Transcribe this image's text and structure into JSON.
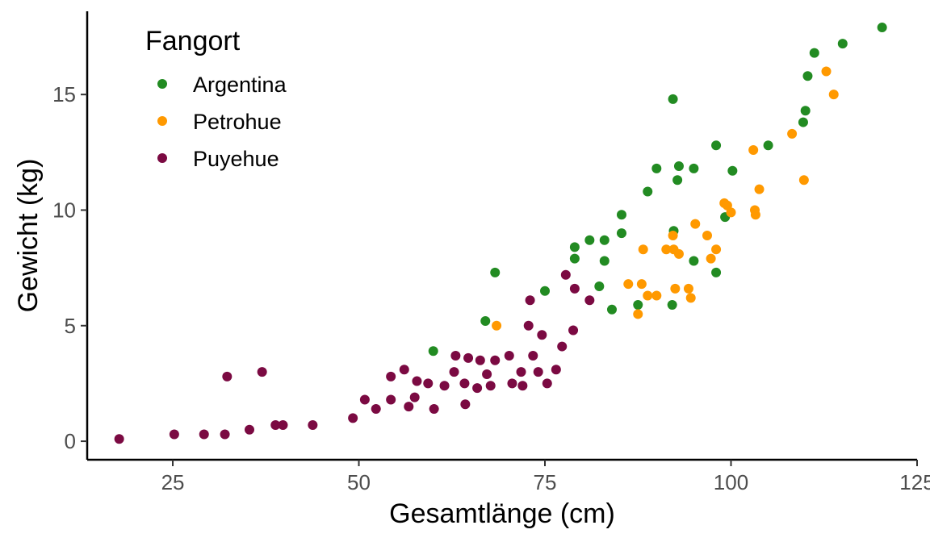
{
  "chart_data": {
    "type": "scatter",
    "title": "",
    "xlabel": "Gesamtlänge (cm)",
    "ylabel": "Gewicht (kg)",
    "xlim": [
      13.5,
      125
    ],
    "ylim": [
      -0.8,
      18.6
    ],
    "x_ticks": [
      25,
      50,
      75,
      100,
      125
    ],
    "y_ticks": [
      0,
      5,
      10,
      15
    ],
    "grid": false,
    "legend": {
      "title": "Fangort",
      "position": "top-left"
    },
    "series": [
      {
        "name": "Argentina",
        "color": "#228B22",
        "points": [
          [
            60,
            3.9
          ],
          [
            67,
            5.2
          ],
          [
            68.3,
            7.3
          ],
          [
            75,
            6.5
          ],
          [
            79,
            8.4
          ],
          [
            79,
            7.9
          ],
          [
            81,
            8.7
          ],
          [
            82.3,
            6.7
          ],
          [
            83,
            8.7
          ],
          [
            83,
            7.8
          ],
          [
            84,
            5.7
          ],
          [
            85.3,
            9.8
          ],
          [
            85.3,
            9.0
          ],
          [
            87.5,
            5.9
          ],
          [
            88.8,
            10.8
          ],
          [
            90,
            11.8
          ],
          [
            92.2,
            14.8
          ],
          [
            92.3,
            9.1
          ],
          [
            92.1,
            5.9
          ],
          [
            92.8,
            11.3
          ],
          [
            93,
            11.9
          ],
          [
            95,
            11.8
          ],
          [
            95,
            7.8
          ],
          [
            98,
            12.8
          ],
          [
            98,
            7.3
          ],
          [
            99.2,
            9.7
          ],
          [
            100.2,
            11.7
          ],
          [
            105,
            12.8
          ],
          [
            109.7,
            13.8
          ],
          [
            110,
            14.3
          ],
          [
            110.3,
            15.8
          ],
          [
            111.2,
            16.8
          ],
          [
            115,
            17.2
          ],
          [
            120.3,
            17.9
          ]
        ]
      },
      {
        "name": "Petrohue",
        "color": "#FF9900",
        "points": [
          [
            68.5,
            5.0
          ],
          [
            86.2,
            6.8
          ],
          [
            87.5,
            5.5
          ],
          [
            88,
            6.8
          ],
          [
            88.2,
            8.3
          ],
          [
            88.8,
            6.3
          ],
          [
            90,
            6.3
          ],
          [
            91.3,
            8.3
          ],
          [
            92.2,
            8.9
          ],
          [
            92.3,
            8.3
          ],
          [
            92.5,
            6.6
          ],
          [
            93,
            8.1
          ],
          [
            94.3,
            6.6
          ],
          [
            94.6,
            6.2
          ],
          [
            95.2,
            9.4
          ],
          [
            96.8,
            8.9
          ],
          [
            97.3,
            7.9
          ],
          [
            98,
            8.3
          ],
          [
            99.1,
            10.3
          ],
          [
            99.5,
            10.2
          ],
          [
            100,
            9.9
          ],
          [
            103,
            12.6
          ],
          [
            103.2,
            10.0
          ],
          [
            103.3,
            9.8
          ],
          [
            103.8,
            10.9
          ],
          [
            108.2,
            13.3
          ],
          [
            109.8,
            11.3
          ],
          [
            112.8,
            16.0
          ],
          [
            113.8,
            15.0
          ]
        ]
      },
      {
        "name": "Puyehue",
        "color": "#7B0A42",
        "points": [
          [
            17.8,
            0.1
          ],
          [
            25.2,
            0.3
          ],
          [
            29.2,
            0.3
          ],
          [
            32,
            0.3
          ],
          [
            32.3,
            2.8
          ],
          [
            35.3,
            0.5
          ],
          [
            37,
            3.0
          ],
          [
            38.8,
            0.7
          ],
          [
            39.8,
            0.7
          ],
          [
            43.8,
            0.7
          ],
          [
            49.2,
            1.0
          ],
          [
            50.8,
            1.8
          ],
          [
            52.3,
            1.4
          ],
          [
            54.3,
            2.8
          ],
          [
            54.3,
            1.8
          ],
          [
            56.1,
            3.1
          ],
          [
            56.7,
            1.5
          ],
          [
            57.5,
            1.9
          ],
          [
            57.8,
            2.6
          ],
          [
            59.3,
            2.5
          ],
          [
            60.1,
            1.4
          ],
          [
            61.5,
            2.4
          ],
          [
            62.8,
            3.0
          ],
          [
            63,
            3.7
          ],
          [
            64.2,
            2.5
          ],
          [
            64.3,
            1.6
          ],
          [
            64.7,
            3.6
          ],
          [
            65.9,
            2.3
          ],
          [
            66.3,
            3.5
          ],
          [
            67.2,
            2.9
          ],
          [
            67.7,
            2.4
          ],
          [
            68.3,
            3.5
          ],
          [
            70.2,
            3.7
          ],
          [
            70.6,
            2.5
          ],
          [
            71.8,
            3.0
          ],
          [
            72,
            2.4
          ],
          [
            72.8,
            5.0
          ],
          [
            73,
            6.1
          ],
          [
            73.4,
            3.7
          ],
          [
            74.1,
            3.0
          ],
          [
            74.6,
            4.6
          ],
          [
            75.3,
            2.5
          ],
          [
            76.5,
            3.1
          ],
          [
            77.3,
            4.1
          ],
          [
            77.8,
            7.2
          ],
          [
            78.8,
            4.8
          ],
          [
            79,
            6.6
          ],
          [
            81,
            6.1
          ]
        ]
      }
    ]
  }
}
